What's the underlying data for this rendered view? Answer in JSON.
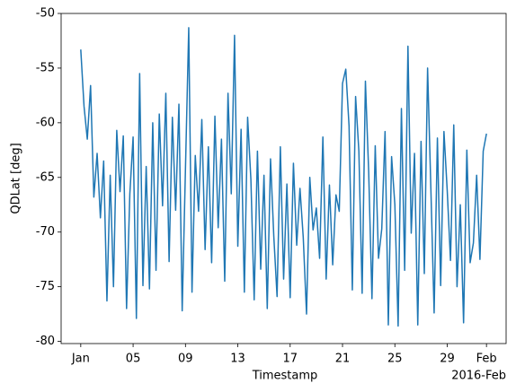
{
  "chart_data": {
    "type": "line",
    "xlabel": "Timestamp",
    "ylabel": "QDLat [deg]",
    "x_offset_label": "2016-Feb",
    "x": [
      "2016-01-01T00:00",
      "2016-01-01T06:00",
      "2016-01-01T12:00",
      "2016-01-01T18:00",
      "2016-01-02T00:00",
      "2016-01-02T06:00",
      "2016-01-02T12:00",
      "2016-01-02T18:00",
      "2016-01-03T00:00",
      "2016-01-03T06:00",
      "2016-01-03T12:00",
      "2016-01-03T18:00",
      "2016-01-04T00:00",
      "2016-01-04T06:00",
      "2016-01-04T12:00",
      "2016-01-04T18:00",
      "2016-01-05T00:00",
      "2016-01-05T06:00",
      "2016-01-05T12:00",
      "2016-01-05T18:00",
      "2016-01-06T00:00",
      "2016-01-06T06:00",
      "2016-01-06T12:00",
      "2016-01-06T18:00",
      "2016-01-07T00:00",
      "2016-01-07T06:00",
      "2016-01-07T12:00",
      "2016-01-07T18:00",
      "2016-01-08T00:00",
      "2016-01-08T06:00",
      "2016-01-08T12:00",
      "2016-01-08T18:00",
      "2016-01-09T00:00",
      "2016-01-09T06:00",
      "2016-01-09T12:00",
      "2016-01-09T18:00",
      "2016-01-10T00:00",
      "2016-01-10T06:00",
      "2016-01-10T12:00",
      "2016-01-10T18:00",
      "2016-01-11T00:00",
      "2016-01-11T06:00",
      "2016-01-11T12:00",
      "2016-01-11T18:00",
      "2016-01-12T00:00",
      "2016-01-12T06:00",
      "2016-01-12T12:00",
      "2016-01-12T18:00",
      "2016-01-13T00:00",
      "2016-01-13T06:00",
      "2016-01-13T12:00",
      "2016-01-13T18:00",
      "2016-01-14T00:00",
      "2016-01-14T06:00",
      "2016-01-14T12:00",
      "2016-01-14T18:00",
      "2016-01-15T00:00",
      "2016-01-15T06:00",
      "2016-01-15T12:00",
      "2016-01-15T18:00",
      "2016-01-16T00:00",
      "2016-01-16T06:00",
      "2016-01-16T12:00",
      "2016-01-16T18:00",
      "2016-01-17T00:00",
      "2016-01-17T06:00",
      "2016-01-17T12:00",
      "2016-01-17T18:00",
      "2016-01-18T00:00",
      "2016-01-18T06:00",
      "2016-01-18T12:00",
      "2016-01-18T18:00",
      "2016-01-19T00:00",
      "2016-01-19T06:00",
      "2016-01-19T12:00",
      "2016-01-19T18:00",
      "2016-01-20T00:00",
      "2016-01-20T06:00",
      "2016-01-20T12:00",
      "2016-01-20T18:00",
      "2016-01-21T00:00",
      "2016-01-21T06:00",
      "2016-01-21T12:00",
      "2016-01-21T18:00",
      "2016-01-22T00:00",
      "2016-01-22T06:00",
      "2016-01-22T12:00",
      "2016-01-22T18:00",
      "2016-01-23T00:00",
      "2016-01-23T06:00",
      "2016-01-23T12:00",
      "2016-01-23T18:00",
      "2016-01-24T00:00",
      "2016-01-24T06:00",
      "2016-01-24T12:00",
      "2016-01-24T18:00",
      "2016-01-25T00:00",
      "2016-01-25T06:00",
      "2016-01-25T12:00",
      "2016-01-25T18:00",
      "2016-01-26T00:00",
      "2016-01-26T06:00",
      "2016-01-26T12:00",
      "2016-01-26T18:00",
      "2016-01-27T00:00",
      "2016-01-27T06:00",
      "2016-01-27T12:00",
      "2016-01-27T18:00",
      "2016-01-28T00:00",
      "2016-01-28T06:00",
      "2016-01-28T12:00",
      "2016-01-28T18:00",
      "2016-01-29T00:00",
      "2016-01-29T06:00",
      "2016-01-29T12:00",
      "2016-01-29T18:00",
      "2016-01-30T00:00",
      "2016-01-30T06:00",
      "2016-01-30T12:00",
      "2016-01-30T18:00",
      "2016-01-31T00:00",
      "2016-01-31T06:00",
      "2016-01-31T12:00",
      "2016-01-31T18:00",
      "2016-02-01T00:00"
    ],
    "series": [
      {
        "color": "#1f77b4",
        "values": [
          -53.3,
          -58.5,
          -61.5,
          -56.6,
          -66.8,
          -62.8,
          -68.7,
          -63.5,
          -76.3,
          -64.8,
          -75.0,
          -60.7,
          -66.3,
          -61.2,
          -77.0,
          -66.5,
          -61.3,
          -77.9,
          -55.5,
          -74.9,
          -64.0,
          -75.2,
          -60.0,
          -73.5,
          -59.2,
          -67.6,
          -57.3,
          -72.7,
          -59.5,
          -68.0,
          -58.3,
          -77.2,
          -64.2,
          -51.3,
          -75.5,
          -63.0,
          -68.1,
          -59.7,
          -71.6,
          -62.2,
          -72.8,
          -59.4,
          -69.6,
          -61.5,
          -74.5,
          -57.3,
          -66.5,
          -52.0,
          -71.3,
          -60.6,
          -75.5,
          -59.5,
          -65.2,
          -76.2,
          -62.6,
          -73.4,
          -64.8,
          -77.0,
          -63.3,
          -70.4,
          -75.9,
          -62.2,
          -74.3,
          -65.6,
          -76.0,
          -63.7,
          -71.2,
          -66.0,
          -70.5,
          -77.5,
          -65.0,
          -69.8,
          -67.8,
          -72.4,
          -61.3,
          -74.3,
          -65.7,
          -73.0,
          -66.6,
          -68.1,
          -56.4,
          -55.1,
          -60.3,
          -75.3,
          -57.6,
          -62.6,
          -75.6,
          -56.2,
          -64.5,
          -76.1,
          -62.1,
          -72.4,
          -69.7,
          -60.8,
          -78.5,
          -63.1,
          -67.5,
          -78.6,
          -58.7,
          -73.5,
          -53.0,
          -70.1,
          -62.8,
          -78.5,
          -61.7,
          -73.8,
          -55.0,
          -66.0,
          -77.4,
          -61.4,
          -74.9,
          -60.8,
          -66.2,
          -72.6,
          -60.2,
          -75.0,
          -67.5,
          -78.3,
          -62.5,
          -72.8,
          -71.0,
          -64.8,
          -72.5,
          -62.6,
          -61.0
        ]
      }
    ],
    "xlim": [
      "2015-12-30T12:00",
      "2016-02-02T12:00"
    ],
    "xticks": [
      {
        "value": "2016-01-01T00:00",
        "label": "Jan"
      },
      {
        "value": "2016-01-05T00:00",
        "label": "05"
      },
      {
        "value": "2016-01-09T00:00",
        "label": "09"
      },
      {
        "value": "2016-01-13T00:00",
        "label": "13"
      },
      {
        "value": "2016-01-17T00:00",
        "label": "17"
      },
      {
        "value": "2016-01-21T00:00",
        "label": "21"
      },
      {
        "value": "2016-01-25T00:00",
        "label": "25"
      },
      {
        "value": "2016-01-29T00:00",
        "label": "29"
      },
      {
        "value": "2016-02-01T00:00",
        "label": "Feb"
      }
    ],
    "ylim": [
      -80.2,
      -50
    ],
    "yticks": [
      -80,
      -75,
      -70,
      -65,
      -60,
      -55,
      -50
    ]
  }
}
